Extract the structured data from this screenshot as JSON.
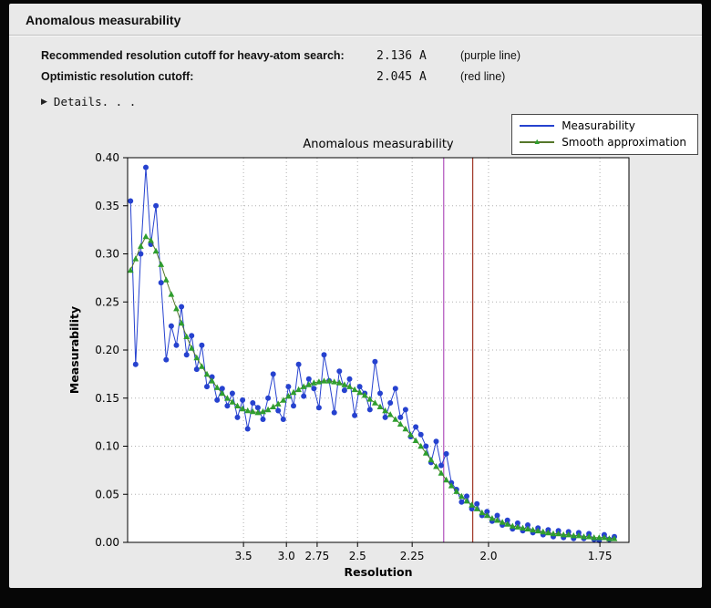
{
  "window": {
    "title": "Anomalous measurability"
  },
  "icons": {
    "disclosure_arrow": "▶",
    "triangle_marker": "▲"
  },
  "info": {
    "rows": [
      {
        "label": "Recommended resolution cutoff for heavy-atom search:",
        "value": "2.136 A",
        "note": "(purple line)"
      },
      {
        "label": "Optimistic resolution cutoff:",
        "value": "2.045 A",
        "note": "(red line)"
      }
    ],
    "details_label": "Details. . ."
  },
  "colors": {
    "window_bg": "#e9e9e9",
    "measurability_series": "#2642cf",
    "smooth_line": "#55772a",
    "smooth_marker": "#2e9e2e",
    "purple_cutoff_line": "#b65fc1",
    "red_cutoff_line": "#a23b2b",
    "grid": "#b0b0b0"
  },
  "chart_data": {
    "type": "line",
    "title": "Anomalous measurability",
    "xlabel": "Resolution",
    "ylabel": "Measurability",
    "axis_note": "x plotted as 1/d^2 (reciprocal space); tick labels give resolution d in Angstrom",
    "grid": "dotted",
    "legend_position": "top-right",
    "xlim": [
      0.002,
      0.3465
    ],
    "ylim": [
      0.0,
      0.4
    ],
    "x_ticks": [
      {
        "label": "3.5",
        "value": 0.08163
      },
      {
        "label": "3.0",
        "value": 0.11111
      },
      {
        "label": "2.75",
        "value": 0.13223
      },
      {
        "label": "2.5",
        "value": 0.16
      },
      {
        "label": "2.25",
        "value": 0.19753
      },
      {
        "label": "2.0",
        "value": 0.25
      },
      {
        "label": "1.75",
        "value": 0.32653
      }
    ],
    "y_ticks": [
      {
        "label": "0.00",
        "value": 0.0
      },
      {
        "label": "0.05",
        "value": 0.05
      },
      {
        "label": "0.10",
        "value": 0.1
      },
      {
        "label": "0.15",
        "value": 0.15
      },
      {
        "label": "0.20",
        "value": 0.2
      },
      {
        "label": "0.25",
        "value": 0.25
      },
      {
        "label": "0.30",
        "value": 0.3
      },
      {
        "label": "0.35",
        "value": 0.35
      },
      {
        "label": "0.40",
        "value": 0.4
      }
    ],
    "vlines": [
      {
        "name": "recommended-cutoff-vline",
        "meaning": "recommended cutoff 2.136 A (purple line)",
        "x": 0.21919,
        "color": "#b65fc1"
      },
      {
        "name": "optimistic-cutoff-vline",
        "meaning": "optimistic cutoff 2.045 A (red line)",
        "x": 0.23912,
        "color": "#a23b2b"
      }
    ],
    "x": [
      0.004,
      0.0075,
      0.011,
      0.0145,
      0.018,
      0.0215,
      0.025,
      0.0285,
      0.032,
      0.0355,
      0.039,
      0.0425,
      0.046,
      0.0495,
      0.053,
      0.0565,
      0.06,
      0.0635,
      0.067,
      0.0705,
      0.074,
      0.0775,
      0.081,
      0.0845,
      0.088,
      0.0915,
      0.095,
      0.0985,
      0.102,
      0.1055,
      0.109,
      0.1125,
      0.116,
      0.1195,
      0.123,
      0.1265,
      0.13,
      0.1335,
      0.137,
      0.1405,
      0.144,
      0.1475,
      0.151,
      0.1545,
      0.158,
      0.1615,
      0.165,
      0.1685,
      0.172,
      0.1755,
      0.179,
      0.1825,
      0.186,
      0.1895,
      0.193,
      0.1965,
      0.2,
      0.2035,
      0.207,
      0.2105,
      0.214,
      0.2175,
      0.221,
      0.2245,
      0.228,
      0.2315,
      0.235,
      0.2385,
      0.242,
      0.2455,
      0.249,
      0.2525,
      0.256,
      0.2595,
      0.263,
      0.2665,
      0.27,
      0.2735,
      0.277,
      0.2805,
      0.284,
      0.2875,
      0.291,
      0.2945,
      0.298,
      0.3015,
      0.305,
      0.3085,
      0.312,
      0.3155,
      0.319,
      0.3225,
      0.326,
      0.3295,
      0.333,
      0.3365
    ],
    "series": [
      {
        "name": "Measurability",
        "marker": "circle",
        "color": "#2642cf",
        "values": [
          0.355,
          0.185,
          0.3,
          0.39,
          0.31,
          0.35,
          0.27,
          0.19,
          0.225,
          0.205,
          0.245,
          0.195,
          0.215,
          0.18,
          0.205,
          0.162,
          0.172,
          0.148,
          0.16,
          0.142,
          0.155,
          0.13,
          0.148,
          0.118,
          0.145,
          0.14,
          0.128,
          0.15,
          0.175,
          0.137,
          0.128,
          0.162,
          0.142,
          0.185,
          0.152,
          0.17,
          0.16,
          0.14,
          0.195,
          0.168,
          0.135,
          0.178,
          0.158,
          0.17,
          0.132,
          0.162,
          0.155,
          0.138,
          0.188,
          0.155,
          0.13,
          0.145,
          0.16,
          0.13,
          0.138,
          0.11,
          0.12,
          0.112,
          0.1,
          0.083,
          0.105,
          0.08,
          0.092,
          0.062,
          0.055,
          0.042,
          0.048,
          0.035,
          0.04,
          0.028,
          0.032,
          0.022,
          0.028,
          0.018,
          0.023,
          0.014,
          0.02,
          0.012,
          0.018,
          0.01,
          0.015,
          0.008,
          0.013,
          0.006,
          0.012,
          0.005,
          0.011,
          0.004,
          0.01,
          0.004,
          0.009,
          0.003,
          0.002,
          0.008,
          0.003,
          0.006
        ]
      },
      {
        "name": "Smooth approximation",
        "marker": "triangle",
        "color": "#55772a",
        "marker_color": "#2e9e2e",
        "values": [
          0.283,
          0.295,
          0.308,
          0.318,
          0.314,
          0.303,
          0.289,
          0.273,
          0.258,
          0.243,
          0.228,
          0.214,
          0.202,
          0.192,
          0.183,
          0.175,
          0.168,
          0.161,
          0.155,
          0.15,
          0.146,
          0.142,
          0.139,
          0.137,
          0.136,
          0.135,
          0.136,
          0.138,
          0.141,
          0.144,
          0.148,
          0.152,
          0.156,
          0.159,
          0.162,
          0.164,
          0.166,
          0.167,
          0.168,
          0.168,
          0.167,
          0.166,
          0.164,
          0.162,
          0.159,
          0.156,
          0.153,
          0.149,
          0.145,
          0.141,
          0.137,
          0.133,
          0.128,
          0.123,
          0.118,
          0.112,
          0.106,
          0.1,
          0.093,
          0.086,
          0.079,
          0.072,
          0.065,
          0.059,
          0.053,
          0.048,
          0.043,
          0.039,
          0.035,
          0.031,
          0.028,
          0.025,
          0.023,
          0.021,
          0.019,
          0.017,
          0.016,
          0.015,
          0.014,
          0.013,
          0.012,
          0.011,
          0.01,
          0.009,
          0.009,
          0.008,
          0.008,
          0.007,
          0.007,
          0.006,
          0.006,
          0.005,
          0.005,
          0.005,
          0.004,
          0.004
        ]
      }
    ]
  }
}
